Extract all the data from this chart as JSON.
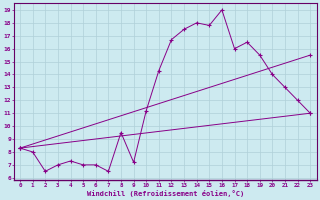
{
  "background_color": "#cdeaf0",
  "grid_color": "#b0d0d8",
  "line_color": "#880088",
  "ylabel_ticks": [
    6,
    7,
    8,
    9,
    10,
    11,
    12,
    13,
    14,
    15,
    16,
    17,
    18,
    19
  ],
  "xlabel_ticks": [
    0,
    1,
    2,
    3,
    4,
    5,
    6,
    7,
    8,
    9,
    10,
    11,
    12,
    13,
    14,
    15,
    16,
    17,
    18,
    19,
    20,
    21,
    22,
    23
  ],
  "xlabel": "Windchill (Refroidissement éolien,°C)",
  "ylim": [
    5.8,
    19.5
  ],
  "xlim": [
    -0.5,
    23.5
  ],
  "series1_x": [
    0,
    1,
    2,
    3,
    4,
    5,
    6,
    7,
    8,
    9,
    10,
    11,
    12,
    13,
    14,
    15,
    16,
    17,
    18,
    19,
    20,
    21,
    22,
    23
  ],
  "series1_y": [
    8.3,
    8.0,
    6.5,
    7.0,
    7.3,
    7.0,
    7.0,
    6.5,
    9.5,
    7.2,
    11.2,
    14.3,
    16.7,
    17.5,
    18.0,
    17.8,
    19.0,
    16.0,
    16.5,
    15.5,
    14.0,
    13.0,
    12.0,
    11.0
  ],
  "series2_x": [
    0,
    23
  ],
  "series2_y": [
    8.3,
    11.0
  ],
  "series3_x": [
    0,
    23
  ],
  "series3_y": [
    8.3,
    15.5
  ],
  "marker": "+"
}
